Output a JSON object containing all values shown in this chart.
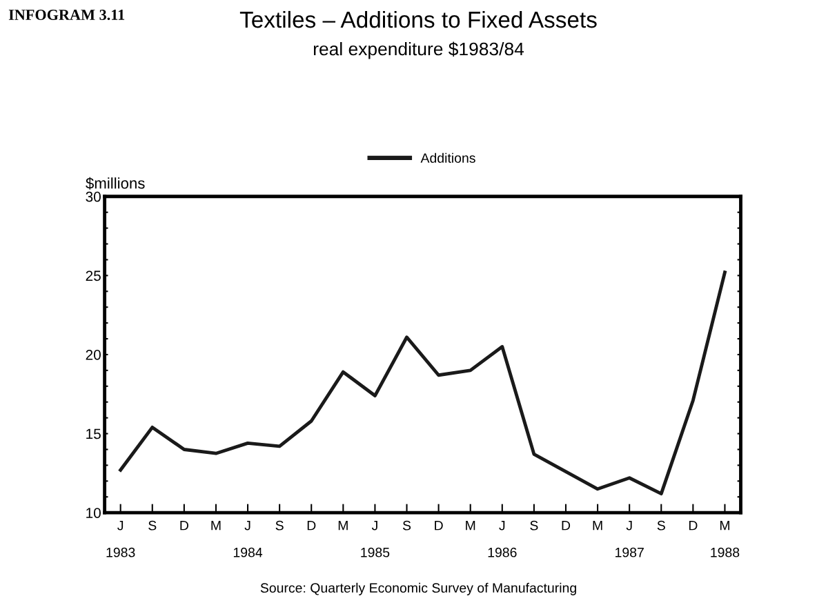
{
  "chart_data": {
    "type": "line",
    "title": "Textiles – Additions to Fixed Assets",
    "subtitle": "real expenditure $1983/84",
    "ylabel": "$millions",
    "categories": [
      "J\n\n1983",
      "S",
      "D",
      "M",
      "J\n\n1984",
      "S",
      "D",
      "M",
      "J\n\n1985",
      "S",
      "D",
      "M",
      "J\n\n1986",
      "S",
      "D",
      "M",
      "J\n\n1987",
      "S",
      "D",
      "M\n\n1988"
    ],
    "series": [
      {
        "name": "Additions",
        "color": "#1a1a1a",
        "values": [
          12.7,
          15.4,
          14.0,
          13.75,
          14.4,
          14.2,
          15.8,
          18.9,
          17.4,
          21.1,
          18.7,
          19.0,
          20.5,
          13.7,
          12.6,
          11.5,
          12.2,
          11.2,
          17.1,
          25.2
        ]
      }
    ],
    "ylim": [
      10,
      30
    ],
    "yticks": [
      10,
      {
        "value": 11,
        "label": null
      },
      {
        "value": 12,
        "label": null
      },
      {
        "value": 13,
        "label": null
      },
      {
        "value": 14,
        "label": null
      },
      15,
      {
        "value": 16,
        "label": null
      },
      {
        "value": 17,
        "label": null
      },
      {
        "value": 18,
        "label": null
      },
      {
        "value": 19,
        "label": null
      },
      20,
      {
        "value": 21,
        "label": null
      },
      {
        "value": 22,
        "label": null
      },
      {
        "value": 23,
        "label": null
      },
      {
        "value": 24,
        "label": null
      },
      25,
      {
        "value": 26,
        "label": null
      },
      {
        "value": 27,
        "label": null
      },
      {
        "value": 28,
        "label": null
      },
      {
        "value": 29,
        "label": null
      },
      30
    ],
    "grid": false,
    "legend": "top",
    "marker": "none",
    "line_style": "solid",
    "annotations": [
      "INFOGRAM 3.11",
      "Source: Quarterly Economic Survey of Manufacturing"
    ]
  }
}
